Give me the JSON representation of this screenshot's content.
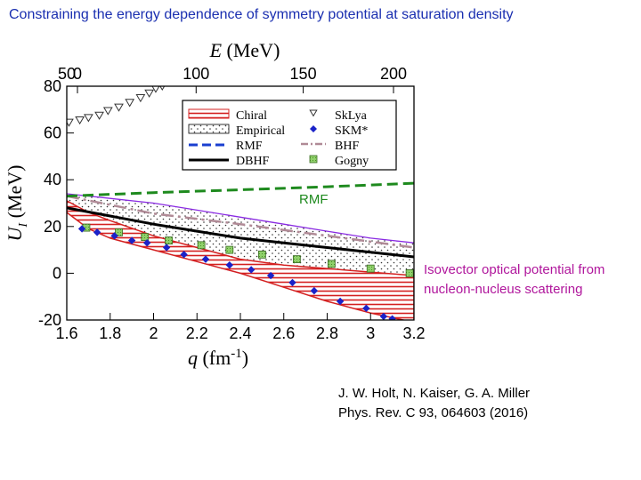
{
  "title": "Constraining the energy dependence of symmetry potential at saturation density",
  "annotations": {
    "rmf": "RMF",
    "isovector_line1": "Isovector optical potential from",
    "isovector_line2": "nucleon-nucleus scattering"
  },
  "citation": {
    "line1": "J. W. Holt, N. Kaiser, G. A. Miller",
    "line2": "Phys. Rev. C 93, 064603 (2016)"
  },
  "colors": {
    "title": "#1a2fb0",
    "chiral": "#d42020",
    "rmf": "#1e8a1e",
    "bhf": "#b08a96",
    "skm": "#1a22c8",
    "gogny": "#8fd06a",
    "boundary": "#8a2be2",
    "annotation_magenta": "#b0169c"
  },
  "chart_data": {
    "type": "line",
    "xlabel": "q (fm-1)",
    "ylabel": "UI (MeV)",
    "top_axis_label": "E (MeV)",
    "xlim": [
      1.6,
      3.2
    ],
    "ylim": [
      -20,
      80
    ],
    "x_ticks": [
      "1.6",
      "1.8",
      "2",
      "2.2",
      "2.4",
      "2.6",
      "2.8",
      "3",
      "3.2"
    ],
    "y_ticks": [
      "-20",
      "0",
      "20",
      "40",
      "60",
      "80"
    ],
    "top_ticks": [
      "0",
      "50",
      "100",
      "150",
      "200"
    ],
    "legend_left": [
      "Chiral",
      "Empirical",
      "RMF",
      "DBHF"
    ],
    "legend_right": [
      "SkLya",
      "SKM*",
      "BHF",
      "Gogny"
    ],
    "bands": {
      "chiral": {
        "x": [
          1.6,
          1.7,
          1.8,
          2.0,
          2.2,
          2.4,
          2.6,
          2.8,
          3.0,
          3.2
        ],
        "upper": [
          31,
          26,
          22.5,
          16,
          11,
          6,
          3.5,
          2,
          0.5,
          -1
        ],
        "lower": [
          26,
          19,
          15,
          10,
          5,
          0,
          -6,
          -12,
          -17,
          -21
        ]
      },
      "empirical": {
        "x": [
          1.6,
          1.8,
          2.0,
          2.2,
          2.4,
          2.6,
          2.8,
          3.0,
          3.2
        ],
        "upper": [
          34,
          32,
          30,
          27,
          24,
          21,
          18,
          15,
          13
        ],
        "lower": [
          28,
          18,
          11,
          5,
          0,
          -5,
          -9,
          -14,
          -19
        ]
      }
    },
    "series": [
      {
        "name": "RMF",
        "x": [
          1.6,
          2.0,
          2.4,
          2.8,
          3.2
        ],
        "values": [
          33,
          34.5,
          35.7,
          37,
          38.5
        ]
      },
      {
        "name": "DBHF",
        "x": [
          1.6,
          1.8,
          2.0,
          2.2,
          2.4,
          2.6,
          2.8,
          3.0,
          3.2
        ],
        "values": [
          28,
          24.5,
          21,
          18,
          15,
          13,
          11,
          9,
          7
        ]
      },
      {
        "name": "BHF",
        "x": [
          1.6,
          2.0,
          2.4,
          2.8,
          3.2
        ],
        "values": [
          33,
          25.5,
          21,
          16,
          11
        ]
      },
      {
        "name": "SkLya",
        "x": [
          1.61,
          1.66,
          1.7,
          1.75,
          1.79,
          1.84,
          1.89,
          1.94,
          1.98,
          2.01,
          2.04
        ],
        "values": [
          64.5,
          65.5,
          66.5,
          67.5,
          69.5,
          71,
          73,
          75,
          77,
          79,
          80
        ]
      },
      {
        "name": "SKM*",
        "x": [
          1.67,
          1.74,
          1.82,
          1.9,
          1.97,
          2.06,
          2.14,
          2.24,
          2.35,
          2.45,
          2.54,
          2.64,
          2.74,
          2.86,
          2.98,
          3.06,
          3.1
        ],
        "values": [
          19,
          17.5,
          16,
          14,
          13,
          11,
          8,
          6,
          3.5,
          1.5,
          -1,
          -4,
          -7.5,
          -12,
          -15,
          -18.5,
          -19.5
        ]
      },
      {
        "name": "Gogny",
        "x": [
          1.69,
          1.84,
          1.96,
          2.07,
          2.22,
          2.35,
          2.5,
          2.66,
          2.82,
          3.0,
          3.18
        ],
        "values": [
          19.5,
          17.5,
          15.5,
          14,
          12,
          10,
          8,
          6,
          4,
          2,
          0
        ]
      }
    ],
    "grid": false,
    "legend_position": "top-right"
  }
}
